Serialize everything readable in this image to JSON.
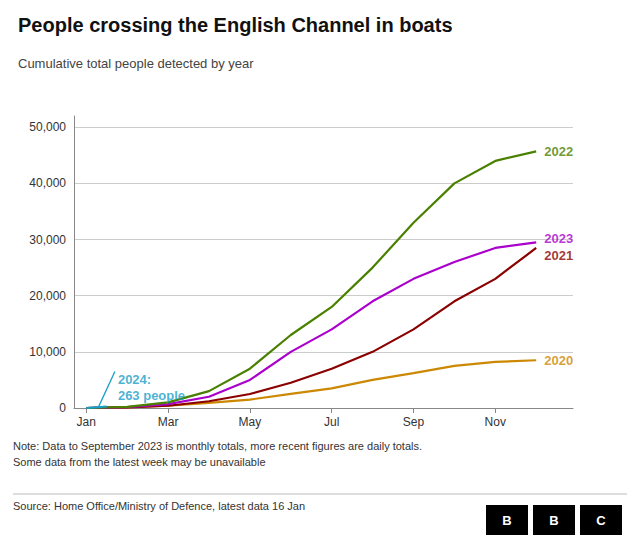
{
  "chart_data": {
    "type": "line",
    "title": "People crossing the English Channel in boats",
    "subtitle": "Cumulative total people detected by year",
    "note": "Note: Data to September 2023 is monthly totals, more recent figures are daily totals.\nSome data from the latest week may be unavailable",
    "source": "Source: Home Office/Ministry of Defence, latest data 16 Jan",
    "logo": [
      "B",
      "B",
      "C"
    ],
    "xlim": [
      0.7,
      12.9
    ],
    "xticks": [
      {
        "value": 1,
        "label": "Jan"
      },
      {
        "value": 3,
        "label": "Mar"
      },
      {
        "value": 5,
        "label": "May"
      },
      {
        "value": 7,
        "label": "Jul"
      },
      {
        "value": 9,
        "label": "Sep"
      },
      {
        "value": 11,
        "label": "Nov"
      }
    ],
    "ylim": [
      0,
      52000
    ],
    "yticks": [
      0,
      {
        "value": 10000,
        "label": "10,000"
      },
      {
        "value": 20000,
        "label": "20,000"
      },
      {
        "value": 30000,
        "label": "30,000"
      },
      {
        "value": 40000,
        "label": "40,000"
      },
      {
        "value": 50000,
        "label": "50,000"
      }
    ],
    "grid": true,
    "series": [
      {
        "name": "2020",
        "color": "#cc8800",
        "x": [
          1,
          2,
          3,
          4,
          5,
          6,
          7,
          8,
          9,
          10,
          11,
          12
        ],
        "values": [
          0,
          100,
          400,
          900,
          1500,
          2500,
          3500,
          5000,
          6200,
          7500,
          8200,
          8500
        ]
      },
      {
        "name": "2021",
        "color": "#8b0000",
        "x": [
          1,
          2,
          3,
          4,
          5,
          6,
          7,
          8,
          9,
          10,
          11,
          12
        ],
        "values": [
          0,
          100,
          400,
          1200,
          2500,
          4500,
          7000,
          10000,
          14000,
          19000,
          23000,
          28500
        ]
      },
      {
        "name": "2023",
        "color": "#aa00cc",
        "x": [
          1,
          2,
          3,
          4,
          5,
          6,
          7,
          8,
          9,
          10,
          11,
          12
        ],
        "values": [
          0,
          150,
          700,
          2000,
          5000,
          10000,
          14000,
          19000,
          23000,
          26000,
          28500,
          29500
        ]
      },
      {
        "name": "2022",
        "color": "#4a8000",
        "x": [
          1,
          2,
          3,
          4,
          5,
          6,
          7,
          8,
          9,
          10,
          11,
          12
        ],
        "values": [
          0,
          200,
          1000,
          3000,
          7000,
          13000,
          18000,
          25000,
          33000,
          40000,
          44000,
          45700
        ]
      },
      {
        "name": "2024",
        "color": "#1a9ec9",
        "x": [
          1,
          1.5
        ],
        "values": [
          0,
          263
        ]
      }
    ],
    "annotations": [
      {
        "text": "2022",
        "x": 12.15,
        "y": 45700,
        "color": "#4a8000"
      },
      {
        "text": "2023",
        "x": 12.15,
        "y": 30200,
        "color": "#aa00cc"
      },
      {
        "text": "2021",
        "x": 12.15,
        "y": 27200,
        "color": "#8b0000"
      },
      {
        "text": "2020",
        "x": 12.15,
        "y": 8500,
        "color": "#cc8800"
      },
      {
        "text": "2024:\n263 people",
        "x": 1.7,
        "y": 6500,
        "arrow_x": 1.3,
        "arrow_y": 200,
        "color": "#1a9ec9"
      }
    ]
  }
}
